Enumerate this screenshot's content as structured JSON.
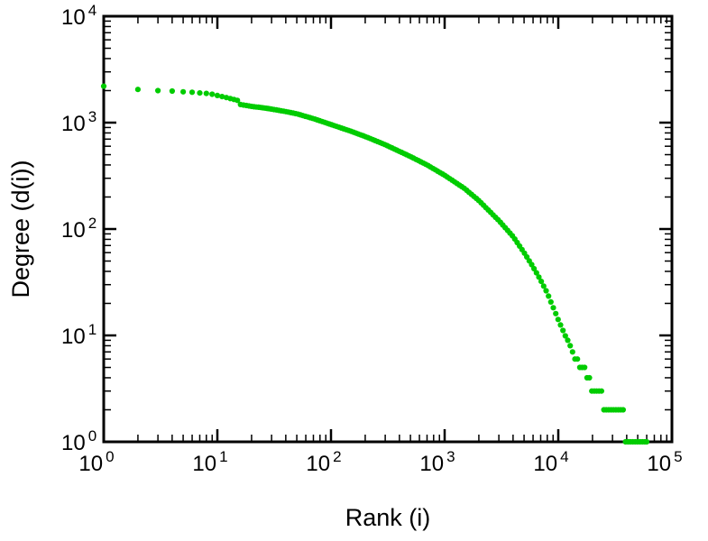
{
  "page": {
    "background": "#ffffff"
  },
  "chart_data": {
    "type": "scatter",
    "title": "",
    "xlabel": "Rank (i)",
    "ylabel": "Degree (d(i))",
    "x_scale": "log",
    "y_scale": "log",
    "xlim": [
      1,
      100000
    ],
    "ylim": [
      1,
      10000
    ],
    "x_tick_exponents": [
      0,
      1,
      2,
      3,
      4,
      5
    ],
    "y_tick_exponents": [
      0,
      1,
      2,
      3,
      4
    ],
    "tick_label_base": "10",
    "grid": "off",
    "legend": "none",
    "marker_color": "#00cc00",
    "frame_color": "#000000",
    "points_format": "[rank, degree]",
    "points": [
      [
        1,
        2200
      ],
      [
        2,
        2050
      ],
      [
        3,
        2000
      ],
      [
        4,
        1980
      ],
      [
        5,
        1950
      ],
      [
        6,
        1930
      ],
      [
        7,
        1900
      ],
      [
        8,
        1880
      ],
      [
        9,
        1850
      ],
      [
        10,
        1800
      ],
      [
        12,
        1720
      ],
      [
        15,
        1620
      ],
      [
        16,
        1480
      ],
      [
        20,
        1420
      ],
      [
        25,
        1380
      ],
      [
        30,
        1340
      ],
      [
        40,
        1270
      ],
      [
        50,
        1210
      ],
      [
        70,
        1090
      ],
      [
        100,
        960
      ],
      [
        150,
        830
      ],
      [
        200,
        740
      ],
      [
        300,
        620
      ],
      [
        500,
        480
      ],
      [
        700,
        400
      ],
      [
        1000,
        320
      ],
      [
        1500,
        240
      ],
      [
        2000,
        185
      ],
      [
        3000,
        120
      ],
      [
        4000,
        85
      ],
      [
        5000,
        60
      ],
      [
        6000,
        44
      ],
      [
        7000,
        33
      ],
      [
        8000,
        25
      ],
      [
        10000,
        14
      ],
      [
        12000,
        9
      ],
      [
        14000,
        6.5
      ],
      [
        16000,
        5
      ],
      [
        18000,
        4.2
      ],
      [
        20000,
        3.4
      ],
      [
        25000,
        2.4
      ],
      [
        30000,
        1.9
      ],
      [
        40000,
        1.4
      ],
      [
        50000,
        1.1
      ],
      [
        60000,
        1.0
      ]
    ]
  }
}
